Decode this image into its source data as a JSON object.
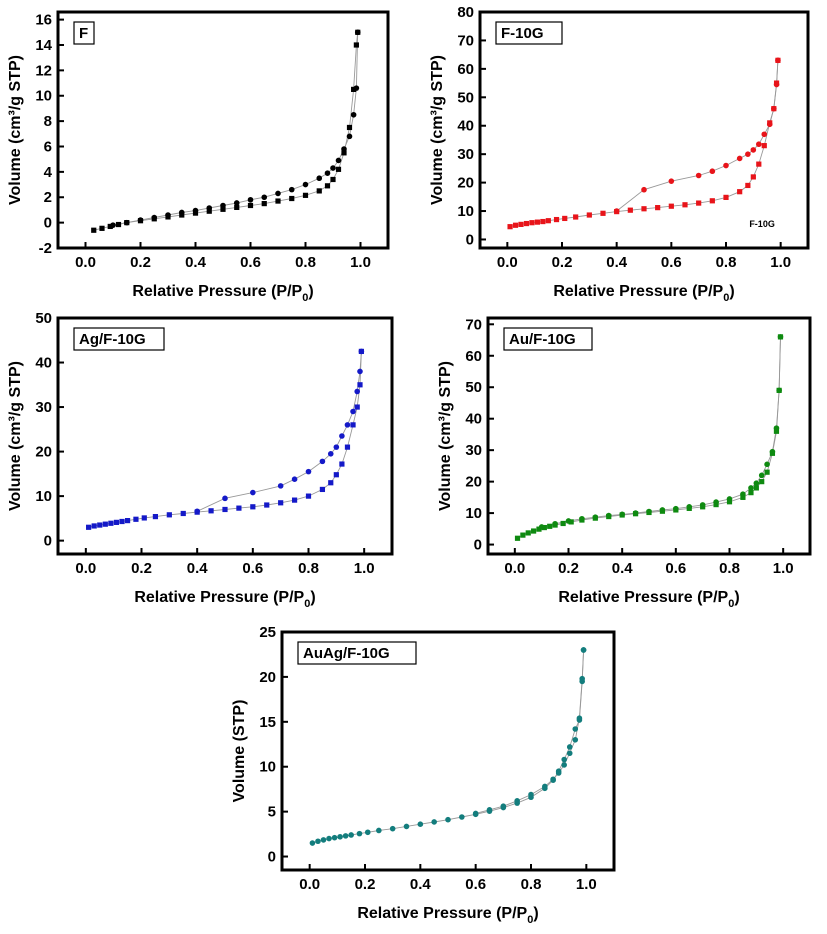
{
  "chart_data": [
    {
      "type": "scatter",
      "label": "F",
      "xlabel_main": "Relative Pressure (P/P",
      "xlabel_sub": "0",
      "xlabel_end": ")",
      "ylabel": "Volume (cm³/g STP)",
      "xlim": [
        -0.1,
        1.1
      ],
      "ylim": [
        -2,
        16.6
      ],
      "xticks": [
        "0.0",
        "0.2",
        "0.4",
        "0.6",
        "0.8",
        "1.0"
      ],
      "yticks": [
        "-2",
        "0",
        "2",
        "4",
        "6",
        "8",
        "10",
        "12",
        "14",
        "16"
      ],
      "color": "#000000",
      "marker": "square",
      "series": [
        {
          "name": "adsorption",
          "x": [
            0.03,
            0.06,
            0.09,
            0.12,
            0.15,
            0.2,
            0.25,
            0.3,
            0.35,
            0.4,
            0.45,
            0.5,
            0.55,
            0.6,
            0.65,
            0.7,
            0.75,
            0.8,
            0.85,
            0.88,
            0.9,
            0.92,
            0.94,
            0.96,
            0.975,
            0.985,
            0.99
          ],
          "y": [
            -0.6,
            -0.45,
            -0.3,
            -0.15,
            0.0,
            0.15,
            0.3,
            0.45,
            0.6,
            0.75,
            0.9,
            1.05,
            1.2,
            1.35,
            1.5,
            1.7,
            1.9,
            2.15,
            2.5,
            2.9,
            3.4,
            4.2,
            5.5,
            7.5,
            10.5,
            14.0,
            15.0
          ]
        },
        {
          "name": "desorption",
          "x": [
            0.99,
            0.985,
            0.975,
            0.96,
            0.94,
            0.92,
            0.9,
            0.88,
            0.85,
            0.8,
            0.75,
            0.7,
            0.65,
            0.6,
            0.55,
            0.5,
            0.45,
            0.4,
            0.35,
            0.3,
            0.25,
            0.2,
            0.15,
            0.1
          ],
          "y": [
            15.0,
            10.6,
            8.5,
            6.8,
            5.8,
            4.9,
            4.3,
            3.9,
            3.5,
            3.0,
            2.6,
            2.3,
            2.0,
            1.8,
            1.55,
            1.35,
            1.15,
            0.95,
            0.8,
            0.6,
            0.4,
            0.2,
            0.0,
            -0.2
          ]
        }
      ]
    },
    {
      "type": "scatter",
      "label": "F-10G",
      "note": "F-10G",
      "xlabel_main": "Relative Pressure (P/P",
      "xlabel_sub": "0",
      "xlabel_end": ")",
      "ylabel": "Volume (cm³/g STP)",
      "xlim": [
        -0.1,
        1.1
      ],
      "ylim": [
        -3,
        80
      ],
      "xticks": [
        "0.0",
        "0.2",
        "0.4",
        "0.6",
        "0.8",
        "1.0"
      ],
      "yticks": [
        "0",
        "10",
        "20",
        "30",
        "40",
        "50",
        "60",
        "70",
        "80"
      ],
      "color": "#e8141a",
      "marker": "square",
      "series": [
        {
          "name": "adsorption",
          "x": [
            0.01,
            0.03,
            0.05,
            0.07,
            0.09,
            0.11,
            0.13,
            0.15,
            0.18,
            0.21,
            0.25,
            0.3,
            0.35,
            0.4,
            0.45,
            0.5,
            0.55,
            0.6,
            0.65,
            0.7,
            0.75,
            0.8,
            0.85,
            0.88,
            0.9,
            0.92,
            0.94,
            0.96,
            0.975,
            0.985,
            0.99
          ],
          "y": [
            4.5,
            5.0,
            5.3,
            5.6,
            5.9,
            6.1,
            6.3,
            6.6,
            7.0,
            7.4,
            7.9,
            8.6,
            9.2,
            9.8,
            10.3,
            10.8,
            11.2,
            11.7,
            12.2,
            12.8,
            13.6,
            14.8,
            16.8,
            19.0,
            22.0,
            26.5,
            33.0,
            41.0,
            46.0,
            55.0,
            63.0
          ]
        },
        {
          "name": "desorption",
          "x": [
            0.99,
            0.985,
            0.975,
            0.96,
            0.94,
            0.92,
            0.9,
            0.88,
            0.85,
            0.8,
            0.75,
            0.7,
            0.6,
            0.5,
            0.4
          ],
          "y": [
            63.0,
            54.5,
            46.0,
            40.5,
            37.0,
            33.5,
            31.5,
            30.0,
            28.5,
            26.0,
            24.0,
            22.5,
            20.5,
            17.5,
            10.0
          ]
        }
      ]
    },
    {
      "type": "scatter",
      "label": "Ag/F-10G",
      "xlabel_main": "Relative Pressure (P/P",
      "xlabel_sub": "0",
      "xlabel_end": ")",
      "ylabel": "Volume (cm³/g STP)",
      "xlim": [
        -0.1,
        1.1
      ],
      "ylim": [
        -3,
        50
      ],
      "xticks": [
        "0.0",
        "0.2",
        "0.4",
        "0.6",
        "0.8",
        "1.0"
      ],
      "yticks": [
        "0",
        "10",
        "20",
        "30",
        "40",
        "50"
      ],
      "color": "#1419c8",
      "marker": "square",
      "series": [
        {
          "name": "adsorption",
          "x": [
            0.01,
            0.03,
            0.05,
            0.07,
            0.09,
            0.11,
            0.13,
            0.15,
            0.18,
            0.21,
            0.25,
            0.3,
            0.35,
            0.4,
            0.45,
            0.5,
            0.55,
            0.6,
            0.65,
            0.7,
            0.75,
            0.8,
            0.85,
            0.88,
            0.9,
            0.92,
            0.94,
            0.96,
            0.975,
            0.985,
            0.99
          ],
          "y": [
            3.0,
            3.3,
            3.5,
            3.7,
            3.9,
            4.1,
            4.3,
            4.5,
            4.8,
            5.1,
            5.4,
            5.8,
            6.1,
            6.4,
            6.7,
            7.0,
            7.3,
            7.6,
            8.0,
            8.5,
            9.1,
            10.0,
            11.5,
            13.0,
            14.8,
            17.2,
            21.0,
            26.0,
            30.0,
            35.0,
            42.5
          ]
        },
        {
          "name": "desorption",
          "x": [
            0.99,
            0.985,
            0.975,
            0.96,
            0.94,
            0.92,
            0.9,
            0.88,
            0.85,
            0.8,
            0.75,
            0.7,
            0.6,
            0.5,
            0.4
          ],
          "y": [
            42.5,
            38.0,
            33.5,
            29.0,
            26.0,
            23.5,
            21.0,
            19.5,
            17.8,
            15.5,
            13.8,
            12.3,
            10.8,
            9.5,
            6.6
          ]
        }
      ]
    },
    {
      "type": "scatter",
      "label": "Au/F-10G",
      "xlabel_main": "Relative Pressure (P/P",
      "xlabel_sub": "0",
      "xlabel_end": ")",
      "ylabel": "Volume (cm³/g STP)",
      "xlim": [
        -0.1,
        1.1
      ],
      "ylim": [
        -3,
        72
      ],
      "xticks": [
        "0.0",
        "0.2",
        "0.4",
        "0.6",
        "0.8",
        "1.0"
      ],
      "yticks": [
        "0",
        "10",
        "20",
        "30",
        "40",
        "50",
        "60",
        "70"
      ],
      "color": "#0e8a10",
      "marker": "square",
      "series": [
        {
          "name": "adsorption",
          "x": [
            0.01,
            0.03,
            0.05,
            0.07,
            0.09,
            0.11,
            0.13,
            0.15,
            0.18,
            0.21,
            0.25,
            0.3,
            0.35,
            0.4,
            0.45,
            0.5,
            0.55,
            0.6,
            0.65,
            0.7,
            0.75,
            0.8,
            0.85,
            0.88,
            0.9,
            0.92,
            0.94,
            0.96,
            0.975,
            0.985,
            0.99
          ],
          "y": [
            2.0,
            3.0,
            3.7,
            4.3,
            4.9,
            5.4,
            5.8,
            6.2,
            6.7,
            7.2,
            7.8,
            8.4,
            8.9,
            9.4,
            9.8,
            10.2,
            10.6,
            11.0,
            11.5,
            12.0,
            12.7,
            13.6,
            15.0,
            16.5,
            18.0,
            20.0,
            23.0,
            29.0,
            36.0,
            49.0,
            66.0
          ]
        },
        {
          "name": "desorption",
          "x": [
            0.99,
            0.985,
            0.975,
            0.96,
            0.94,
            0.92,
            0.9,
            0.88,
            0.85,
            0.8,
            0.75,
            0.7,
            0.65,
            0.6,
            0.55,
            0.5,
            0.45,
            0.4,
            0.35,
            0.3,
            0.25,
            0.2,
            0.15,
            0.1
          ],
          "y": [
            66.0,
            49.0,
            37.0,
            29.5,
            25.5,
            22.0,
            19.5,
            18.0,
            16.0,
            14.5,
            13.5,
            12.6,
            12.0,
            11.4,
            11.0,
            10.5,
            10.0,
            9.6,
            9.2,
            8.7,
            8.2,
            7.5,
            6.6,
            5.6
          ]
        }
      ]
    },
    {
      "type": "scatter",
      "label": "AuAg/F-10G",
      "xlabel_main": "Relative Pressure (P/P",
      "xlabel_sub": "0",
      "xlabel_end": ")",
      "ylabel": "Volume (STP)",
      "xlim": [
        -0.1,
        1.1
      ],
      "ylim": [
        -1.5,
        25
      ],
      "xticks": [
        "0.0",
        "0.2",
        "0.4",
        "0.6",
        "0.8",
        "1.0"
      ],
      "yticks": [
        "0",
        "5",
        "10",
        "15",
        "20",
        "25"
      ],
      "color": "#137d7d",
      "marker": "circle",
      "series": [
        {
          "name": "adsorption",
          "x": [
            0.01,
            0.03,
            0.05,
            0.07,
            0.09,
            0.11,
            0.13,
            0.15,
            0.18,
            0.21,
            0.25,
            0.3,
            0.35,
            0.4,
            0.45,
            0.5,
            0.55,
            0.6,
            0.65,
            0.7,
            0.75,
            0.8,
            0.85,
            0.88,
            0.9,
            0.92,
            0.94,
            0.96,
            0.975,
            0.985,
            0.99
          ],
          "y": [
            1.5,
            1.7,
            1.85,
            2.0,
            2.1,
            2.2,
            2.3,
            2.4,
            2.55,
            2.7,
            2.9,
            3.1,
            3.35,
            3.6,
            3.85,
            4.1,
            4.4,
            4.7,
            5.05,
            5.45,
            5.95,
            6.6,
            7.6,
            8.5,
            9.5,
            10.8,
            12.2,
            14.2,
            15.2,
            19.5,
            23.0
          ]
        },
        {
          "name": "desorption",
          "x": [
            0.99,
            0.985,
            0.975,
            0.96,
            0.94,
            0.92,
            0.9,
            0.88,
            0.85,
            0.8,
            0.75,
            0.7,
            0.65,
            0.6
          ],
          "y": [
            23.0,
            19.8,
            15.4,
            13.0,
            11.5,
            10.2,
            9.3,
            8.6,
            7.8,
            6.9,
            6.2,
            5.6,
            5.2,
            4.8
          ]
        }
      ]
    }
  ]
}
